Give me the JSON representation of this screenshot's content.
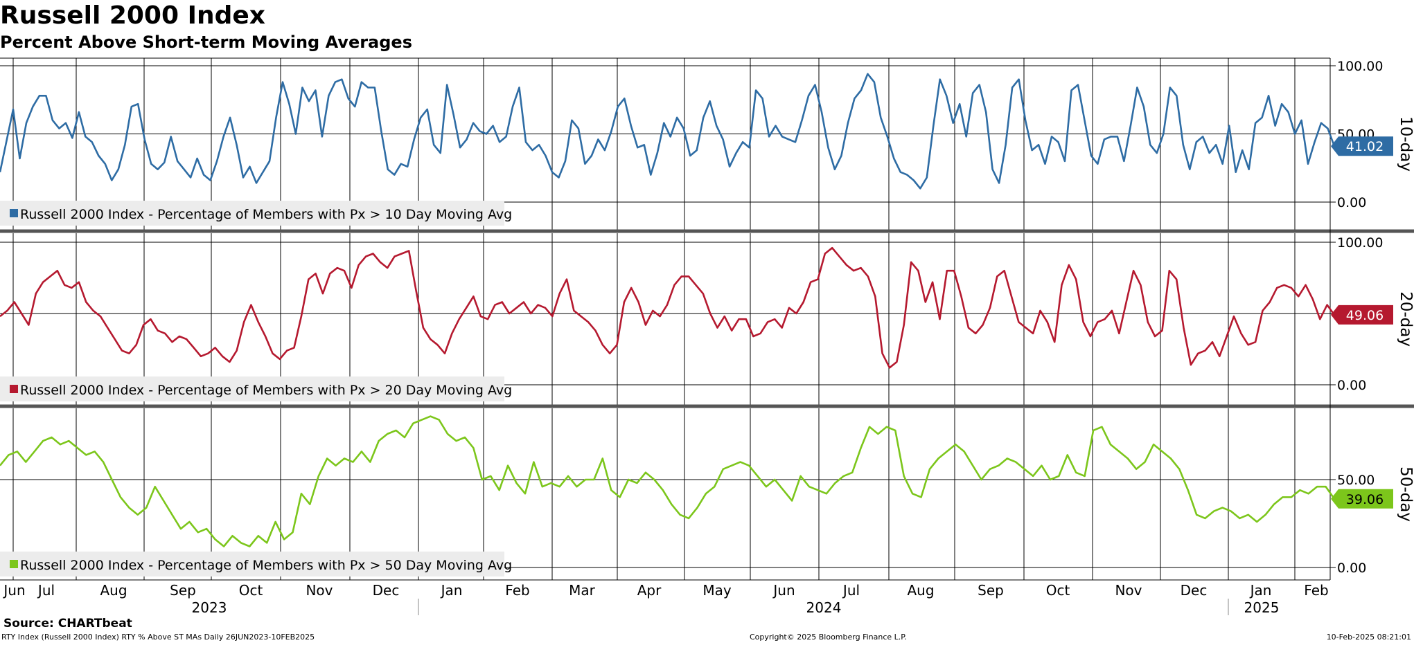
{
  "title": "Russell 2000 Index",
  "subtitle": "Percent Above Short-term Moving Averages",
  "source": "Source: CHARTbeat",
  "footer": {
    "left": "RTY Index (Russell 2000 Index) RTY % Above ST MAs  Daily 26JUN2023-10FEB2025",
    "center": "Copyright© 2025 Bloomberg Finance L.P.",
    "right": "10-Feb-2025 08:21:01"
  },
  "chart_data": [
    {
      "type": "line",
      "panel_label": "10-day",
      "legend": "Russell 2000 Index - Percentage of Members with Px > 10 Day Moving Avg",
      "color": "#2e6ca4",
      "last_value_label": "41.02",
      "last_value": 41.02,
      "ylim": [
        -5,
        105
      ],
      "ticks": [
        "100.00",
        "50.00",
        "0.00"
      ],
      "tick_values": [
        100,
        50,
        0
      ],
      "series": [
        {
          "values": [
            22,
            45,
            68,
            32,
            58,
            70,
            78,
            78,
            60,
            54,
            58,
            47,
            66,
            48,
            44,
            34,
            28,
            16,
            24,
            42,
            70,
            72,
            46,
            28,
            24,
            29,
            48,
            30,
            24,
            18,
            32,
            20,
            16,
            30,
            48,
            62,
            42,
            18,
            26,
            14,
            22,
            30,
            62,
            88,
            72,
            50,
            84,
            74,
            82,
            48,
            78,
            88,
            90,
            76,
            70,
            88,
            84,
            84,
            52,
            24,
            20,
            28,
            26,
            46,
            62,
            68,
            42,
            36,
            86,
            64,
            40,
            46,
            58,
            52,
            50,
            56,
            44,
            48,
            70,
            84,
            44,
            38,
            42,
            34,
            22,
            18,
            30,
            60,
            54,
            28,
            34,
            46,
            38,
            52,
            70,
            76,
            56,
            40,
            42,
            20,
            36,
            58,
            48,
            62,
            54,
            34,
            38,
            62,
            74,
            56,
            46,
            26,
            36,
            44,
            40,
            82,
            76,
            48,
            56,
            48,
            46,
            44,
            60,
            78,
            86,
            66,
            40,
            24,
            34,
            58,
            76,
            82,
            94,
            88,
            62,
            48,
            32,
            22,
            20,
            16,
            10,
            18,
            56,
            90,
            78,
            58,
            72,
            48,
            80,
            86,
            66,
            24,
            14,
            42,
            84,
            90,
            60,
            38,
            42,
            28,
            48,
            44,
            30,
            82,
            86,
            60,
            34,
            28,
            46,
            48,
            48,
            30,
            56,
            84,
            70,
            42,
            36,
            50,
            84,
            78,
            42,
            24,
            44,
            48,
            36,
            42,
            28,
            56,
            22,
            38,
            24,
            58,
            62,
            78,
            56,
            72,
            66,
            50,
            60,
            28,
            44,
            58,
            54,
            41.02
          ]
        }
      ]
    },
    {
      "type": "line",
      "panel_label": "20-day",
      "legend": "Russell 2000 Index - Percentage of Members with Px > 20 Day Moving Avg",
      "color": "#b5192f",
      "last_value_label": "49.06",
      "last_value": 49.06,
      "ylim": [
        -5,
        105
      ],
      "ticks": [
        "100.00",
        "50.00",
        "0.00"
      ],
      "tick_values": [
        100,
        50,
        0
      ],
      "series": [
        {
          "values": [
            48,
            52,
            58,
            50,
            42,
            64,
            72,
            76,
            80,
            70,
            68,
            72,
            58,
            52,
            48,
            40,
            32,
            24,
            22,
            28,
            42,
            46,
            38,
            36,
            30,
            34,
            32,
            26,
            20,
            22,
            26,
            20,
            16,
            24,
            44,
            56,
            44,
            34,
            22,
            18,
            24,
            26,
            48,
            74,
            78,
            64,
            78,
            82,
            80,
            68,
            84,
            90,
            92,
            86,
            82,
            90,
            92,
            94,
            66,
            40,
            32,
            28,
            22,
            36,
            46,
            54,
            62,
            48,
            46,
            56,
            58,
            50,
            54,
            58,
            50,
            56,
            54,
            48,
            64,
            74,
            52,
            48,
            44,
            38,
            28,
            22,
            28,
            58,
            68,
            58,
            42,
            52,
            48,
            56,
            70,
            76,
            76,
            70,
            64,
            50,
            40,
            48,
            38,
            46,
            46,
            34,
            36,
            44,
            46,
            40,
            54,
            50,
            58,
            72,
            74,
            92,
            96,
            90,
            84,
            80,
            82,
            76,
            62,
            22,
            12,
            16,
            42,
            86,
            80,
            58,
            72,
            46,
            80,
            80,
            62,
            40,
            36,
            42,
            54,
            76,
            80,
            62,
            44,
            40,
            36,
            52,
            44,
            30,
            70,
            84,
            74,
            44,
            34,
            44,
            46,
            52,
            36,
            58,
            80,
            70,
            44,
            34,
            38,
            80,
            74,
            40,
            14,
            22,
            24,
            30,
            20,
            34,
            48,
            36,
            28,
            30,
            52,
            58,
            68,
            70,
            68,
            62,
            70,
            60,
            46,
            56,
            49.06
          ]
        }
      ]
    },
    {
      "type": "line",
      "panel_label": "50-day",
      "legend": "Russell 2000 Index - Percentage of Members with Px > 50 Day Moving Avg",
      "color": "#7cc61b",
      "last_value_label": "39.06",
      "last_value": 39.06,
      "ylim": [
        0,
        100
      ],
      "ticks": [
        "50.00",
        "0.00"
      ],
      "tick_values": [
        50,
        0
      ],
      "series": [
        {
          "values": [
            58,
            64,
            66,
            60,
            66,
            72,
            74,
            70,
            72,
            68,
            64,
            66,
            60,
            50,
            40,
            34,
            30,
            34,
            46,
            38,
            30,
            22,
            26,
            20,
            22,
            16,
            12,
            18,
            14,
            12,
            18,
            14,
            26,
            16,
            20,
            42,
            36,
            52,
            62,
            58,
            62,
            60,
            66,
            60,
            72,
            76,
            78,
            74,
            82,
            84,
            86,
            84,
            76,
            72,
            74,
            68,
            50,
            52,
            44,
            58,
            48,
            42,
            60,
            46,
            48,
            46,
            52,
            46,
            50,
            50,
            62,
            44,
            40,
            50,
            48,
            54,
            50,
            44,
            36,
            30,
            28,
            34,
            42,
            46,
            56,
            58,
            60,
            58,
            52,
            46,
            50,
            44,
            38,
            52,
            46,
            44,
            42,
            48,
            52,
            54,
            68,
            80,
            76,
            80,
            78,
            52,
            42,
            40,
            56,
            62,
            66,
            70,
            66,
            58,
            50,
            56,
            58,
            62,
            60,
            56,
            52,
            58,
            50,
            52,
            64,
            54,
            52,
            78,
            80,
            70,
            66,
            62,
            56,
            60,
            70,
            66,
            62,
            56,
            44,
            30,
            28,
            32,
            34,
            32,
            28,
            30,
            26,
            30,
            36,
            40,
            40,
            44,
            42,
            46,
            46,
            39.06
          ]
        }
      ]
    }
  ],
  "x_axis": {
    "months": [
      "Jun",
      "Jul",
      "Aug",
      "Sep",
      "Oct",
      "Nov",
      "Dec",
      "Jan",
      "Feb",
      "Mar",
      "Apr",
      "May",
      "Jun",
      "Jul",
      "Aug",
      "Sep",
      "Oct",
      "Nov",
      "Dec",
      "Jan",
      "Feb"
    ],
    "years": [
      "2023",
      "2024",
      "2025"
    ],
    "start_date": "26JUN2023",
    "end_date": "10FEB2025"
  }
}
